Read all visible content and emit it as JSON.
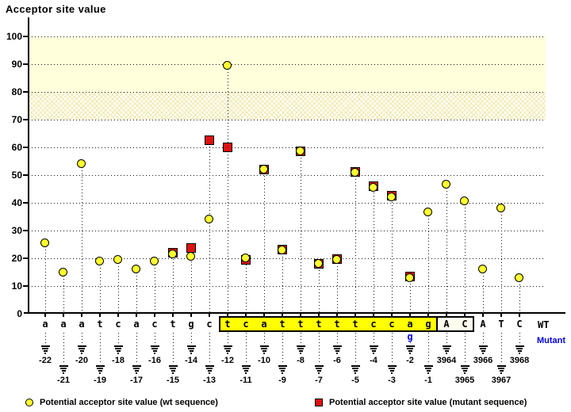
{
  "title": "Acceptor site value",
  "labels": {
    "wt": "WT",
    "mutant": "Mutant"
  },
  "legend": {
    "wt": "Potential acceptor site value (wt sequence)",
    "mutant": "Potential acceptor site value (mutant sequence)"
  },
  "colors": {
    "wt_marker": "#ffff2e",
    "mutant_marker": "#dd1111",
    "marker_outline": "#000000",
    "band_solid": "#ffffdb",
    "band_hatch_line": "#f0e8a8",
    "sequence_highlight": "#ffff00",
    "exon_box_fill": "#fffff0",
    "mutant_text": "#0000dd"
  },
  "chart_data": {
    "type": "scatter",
    "title": "Acceptor site value",
    "ylabel": "Acceptor site value",
    "ylim": [
      0,
      107
    ],
    "yticks": [
      100,
      90,
      80,
      70,
      60,
      50,
      40,
      30,
      20,
      10,
      0
    ],
    "grid": "dotted-horizontal",
    "threshold_bands": [
      {
        "from": 80,
        "to": 100,
        "style": "solid"
      },
      {
        "from": 70,
        "to": 80,
        "style": "hatched"
      }
    ],
    "series": [
      {
        "name": "wt sequence",
        "marker": "circle",
        "color": "#ffff2e"
      },
      {
        "name": "mutant sequence",
        "marker": "square",
        "color": "#dd1111"
      }
    ],
    "columns": [
      {
        "pos": "-22",
        "base": "a",
        "region": "intron",
        "wt": 25.5,
        "mutant": null
      },
      {
        "pos": "-21",
        "base": "a",
        "region": "intron",
        "wt": 15,
        "mutant": null
      },
      {
        "pos": "-20",
        "base": "a",
        "region": "intron",
        "wt": 54,
        "mutant": null
      },
      {
        "pos": "-19",
        "base": "t",
        "region": "intron",
        "wt": 19,
        "mutant": null
      },
      {
        "pos": "-18",
        "base": "c",
        "region": "intron",
        "wt": 19.5,
        "mutant": null
      },
      {
        "pos": "-17",
        "base": "a",
        "region": "intron",
        "wt": 16,
        "mutant": null
      },
      {
        "pos": "-16",
        "base": "c",
        "region": "intron",
        "wt": 19,
        "mutant": null
      },
      {
        "pos": "-15",
        "base": "t",
        "region": "intron",
        "wt": 21.5,
        "mutant": 22
      },
      {
        "pos": "-14",
        "base": "g",
        "region": "intron",
        "wt": 20.5,
        "mutant": 23.5
      },
      {
        "pos": "-13",
        "base": "c",
        "region": "intron",
        "wt": 34,
        "mutant": 62.5
      },
      {
        "pos": "-12",
        "base": "t",
        "region": "acceptor",
        "wt": 89.5,
        "mutant": 60
      },
      {
        "pos": "-11",
        "base": "c",
        "region": "acceptor",
        "wt": 20,
        "mutant": 19.3
      },
      {
        "pos": "-10",
        "base": "a",
        "region": "acceptor",
        "wt": 52,
        "mutant": 52
      },
      {
        "pos": "-9",
        "base": "t",
        "region": "acceptor",
        "wt": 23,
        "mutant": 23
      },
      {
        "pos": "-8",
        "base": "t",
        "region": "acceptor",
        "wt": 58.5,
        "mutant": 58.5
      },
      {
        "pos": "-7",
        "base": "t",
        "region": "acceptor",
        "wt": 18,
        "mutant": 18
      },
      {
        "pos": "-6",
        "base": "t",
        "region": "acceptor",
        "wt": 19.5,
        "mutant": 19.5
      },
      {
        "pos": "-5",
        "base": "t",
        "region": "acceptor",
        "wt": 51,
        "mutant": 51
      },
      {
        "pos": "-4",
        "base": "c",
        "region": "acceptor",
        "wt": 45.5,
        "mutant": 46
      },
      {
        "pos": "-3",
        "base": "c",
        "region": "acceptor",
        "wt": 42,
        "mutant": 42.5
      },
      {
        "pos": "-2",
        "base": "a",
        "mutant_base": "g",
        "region": "acceptor",
        "wt": 13,
        "mutant": 13.2
      },
      {
        "pos": "-1",
        "base": "g",
        "region": "acceptor",
        "wt": 36.5,
        "mutant": null
      },
      {
        "pos": "3964",
        "base": "A",
        "region": "exon_box",
        "wt": 46.5,
        "mutant": null
      },
      {
        "pos": "3965",
        "base": "C",
        "region": "exon_box",
        "wt": 40.5,
        "mutant": null
      },
      {
        "pos": "3966",
        "base": "A",
        "region": "exon",
        "wt": 16,
        "mutant": null
      },
      {
        "pos": "3967",
        "base": "T",
        "region": "exon",
        "wt": 38,
        "mutant": null
      },
      {
        "pos": "3968",
        "base": "C",
        "region": "exon",
        "wt": 13,
        "mutant": null
      }
    ]
  }
}
